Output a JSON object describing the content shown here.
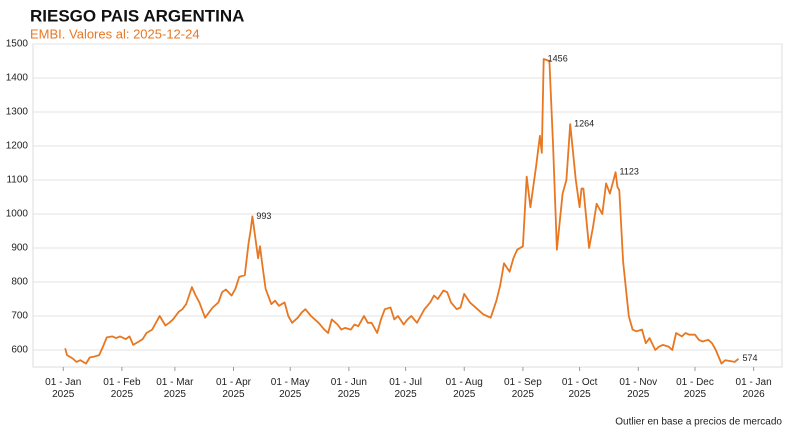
{
  "chart_data": {
    "type": "line",
    "title": "RIESGO PAIS ARGENTINA",
    "subtitle": "EMBI. Valores al: 2025-12-24",
    "footnote": "Outlier en base a precios de mercado",
    "xlim": [
      "2024-12-16",
      "2026-01-16"
    ],
    "ylim": [
      550,
      1500
    ],
    "yticks": [
      600,
      700,
      800,
      900,
      1000,
      1100,
      1200,
      1300,
      1400,
      1500
    ],
    "xticks": [
      {
        "value": "2025-01-01",
        "label": "01 - Jan\n2025"
      },
      {
        "value": "2025-02-01",
        "label": "01 - Feb\n2025"
      },
      {
        "value": "2025-03-01",
        "label": "01 - Mar\n2025"
      },
      {
        "value": "2025-04-01",
        "label": "01 - Apr\n2025"
      },
      {
        "value": "2025-05-01",
        "label": "01 - May\n2025"
      },
      {
        "value": "2025-06-01",
        "label": "01 - Jun\n2025"
      },
      {
        "value": "2025-07-01",
        "label": "01 - Jul\n2025"
      },
      {
        "value": "2025-08-01",
        "label": "01 - Aug\n2025"
      },
      {
        "value": "2025-09-01",
        "label": "01 - Sep\n2025"
      },
      {
        "value": "2025-10-01",
        "label": "01 - Oct\n2025"
      },
      {
        "value": "2025-11-01",
        "label": "01 - Nov\n2025"
      },
      {
        "value": "2025-12-01",
        "label": "01 - Dec\n2025"
      },
      {
        "value": "2026-01-01",
        "label": "01 - Jan\n2026"
      }
    ],
    "grid": true,
    "color": "#e87722",
    "x": [
      "2025-01-02",
      "2025-01-03",
      "2025-01-06",
      "2025-01-08",
      "2025-01-10",
      "2025-01-13",
      "2025-01-15",
      "2025-01-17",
      "2025-01-20",
      "2025-01-22",
      "2025-01-24",
      "2025-01-27",
      "2025-01-29",
      "2025-01-31",
      "2025-02-03",
      "2025-02-05",
      "2025-02-07",
      "2025-02-10",
      "2025-02-12",
      "2025-02-14",
      "2025-02-17",
      "2025-02-19",
      "2025-02-21",
      "2025-02-24",
      "2025-02-26",
      "2025-02-28",
      "2025-03-03",
      "2025-03-05",
      "2025-03-07",
      "2025-03-10",
      "2025-03-12",
      "2025-03-14",
      "2025-03-17",
      "2025-03-19",
      "2025-03-21",
      "2025-03-24",
      "2025-03-26",
      "2025-03-28",
      "2025-03-31",
      "2025-04-02",
      "2025-04-04",
      "2025-04-07",
      "2025-04-09",
      "2025-04-10",
      "2025-04-11",
      "2025-04-14",
      "2025-04-15",
      "2025-04-16",
      "2025-04-18",
      "2025-04-21",
      "2025-04-23",
      "2025-04-25",
      "2025-04-28",
      "2025-04-30",
      "2025-05-02",
      "2025-05-05",
      "2025-05-07",
      "2025-05-09",
      "2025-05-12",
      "2025-05-14",
      "2025-05-16",
      "2025-05-19",
      "2025-05-21",
      "2025-05-23",
      "2025-05-26",
      "2025-05-28",
      "2025-05-30",
      "2025-06-02",
      "2025-06-04",
      "2025-06-06",
      "2025-06-09",
      "2025-06-11",
      "2025-06-13",
      "2025-06-16",
      "2025-06-18",
      "2025-06-20",
      "2025-06-23",
      "2025-06-25",
      "2025-06-27",
      "2025-06-30",
      "2025-07-02",
      "2025-07-04",
      "2025-07-07",
      "2025-07-09",
      "2025-07-11",
      "2025-07-14",
      "2025-07-16",
      "2025-07-18",
      "2025-07-21",
      "2025-07-23",
      "2025-07-25",
      "2025-07-28",
      "2025-07-30",
      "2025-08-01",
      "2025-08-04",
      "2025-08-06",
      "2025-08-08",
      "2025-08-11",
      "2025-08-13",
      "2025-08-15",
      "2025-08-18",
      "2025-08-20",
      "2025-08-22",
      "2025-08-25",
      "2025-08-27",
      "2025-08-29",
      "2025-09-01",
      "2025-09-03",
      "2025-09-05",
      "2025-09-08",
      "2025-09-10",
      "2025-09-11",
      "2025-09-12",
      "2025-09-15",
      "2025-09-17",
      "2025-09-19",
      "2025-09-22",
      "2025-09-24",
      "2025-09-26",
      "2025-09-29",
      "2025-10-01",
      "2025-10-02",
      "2025-10-03",
      "2025-10-06",
      "2025-10-08",
      "2025-10-10",
      "2025-10-13",
      "2025-10-15",
      "2025-10-17",
      "2025-10-20",
      "2025-10-21",
      "2025-10-22",
      "2025-10-24",
      "2025-10-27",
      "2025-10-29",
      "2025-10-31",
      "2025-11-03",
      "2025-11-05",
      "2025-11-07",
      "2025-11-10",
      "2025-11-12",
      "2025-11-14",
      "2025-11-17",
      "2025-11-19",
      "2025-11-21",
      "2025-11-24",
      "2025-11-26",
      "2025-11-28",
      "2025-12-01",
      "2025-12-03",
      "2025-12-05",
      "2025-12-08",
      "2025-12-10",
      "2025-12-12",
      "2025-12-15",
      "2025-12-17",
      "2025-12-19",
      "2025-12-22",
      "2025-12-24"
    ],
    "values": [
      605,
      585,
      575,
      565,
      570,
      560,
      578,
      580,
      585,
      610,
      637,
      640,
      635,
      640,
      632,
      640,
      615,
      625,
      632,
      650,
      660,
      680,
      700,
      672,
      680,
      690,
      712,
      720,
      735,
      785,
      760,
      740,
      695,
      710,
      725,
      740,
      770,
      778,
      760,
      780,
      815,
      820,
      915,
      950,
      993,
      870,
      905,
      860,
      780,
      735,
      745,
      730,
      740,
      700,
      680,
      695,
      710,
      720,
      700,
      690,
      680,
      660,
      650,
      690,
      675,
      660,
      665,
      660,
      675,
      670,
      700,
      680,
      680,
      650,
      690,
      720,
      725,
      690,
      700,
      675,
      690,
      700,
      680,
      700,
      720,
      740,
      760,
      750,
      775,
      770,
      740,
      720,
      725,
      765,
      740,
      730,
      720,
      705,
      700,
      695,
      745,
      790,
      855,
      830,
      870,
      895,
      905,
      1110,
      1020,
      1140,
      1230,
      1180,
      1456,
      1450,
      1200,
      895,
      1060,
      1100,
      1264,
      1100,
      1020,
      1075,
      1075,
      900,
      960,
      1030,
      1000,
      1090,
      1060,
      1123,
      1080,
      1070,
      860,
      700,
      660,
      655,
      660,
      620,
      635,
      600,
      610,
      615,
      610,
      600,
      650,
      640,
      650,
      645,
      645,
      630,
      625,
      630,
      620,
      600,
      560,
      570,
      568,
      565,
      574
    ],
    "annotations": [
      {
        "x": "2025-04-11",
        "label": "993"
      },
      {
        "x": "2025-09-12",
        "label": "1456"
      },
      {
        "x": "2025-09-26",
        "label": "1264"
      },
      {
        "x": "2025-10-20",
        "label": "1123"
      },
      {
        "x": "2025-12-24",
        "label": "574"
      }
    ]
  }
}
